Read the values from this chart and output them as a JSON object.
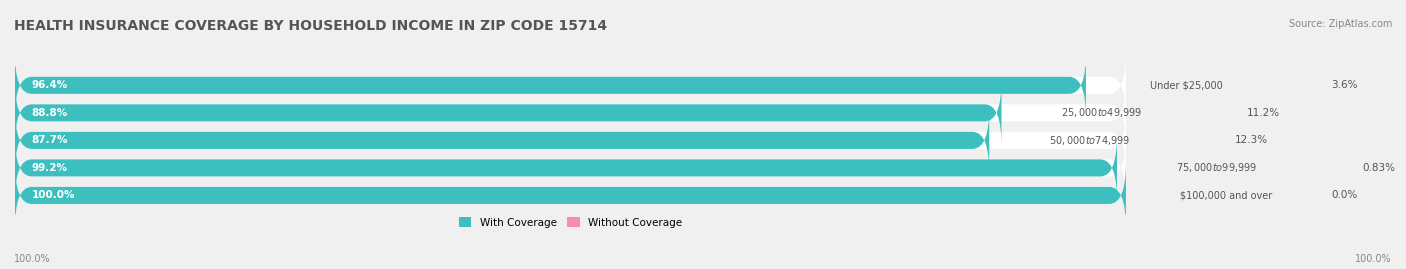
{
  "title": "HEALTH INSURANCE COVERAGE BY HOUSEHOLD INCOME IN ZIP CODE 15714",
  "source": "Source: ZipAtlas.com",
  "categories": [
    "Under $25,000",
    "$25,000 to $49,999",
    "$50,000 to $74,999",
    "$75,000 to $99,999",
    "$100,000 and over"
  ],
  "with_coverage": [
    96.4,
    88.8,
    87.7,
    99.2,
    100.0
  ],
  "without_coverage": [
    3.6,
    11.2,
    12.3,
    0.83,
    0.0
  ],
  "color_with": "#3dbfbf",
  "color_without": "#f48fb1",
  "bg_color": "#f0f0f0",
  "bar_bg_color": "#ffffff",
  "title_fontsize": 10,
  "label_fontsize": 7.5,
  "tick_fontsize": 7,
  "bar_height": 0.62,
  "xlim": [
    0,
    100
  ]
}
